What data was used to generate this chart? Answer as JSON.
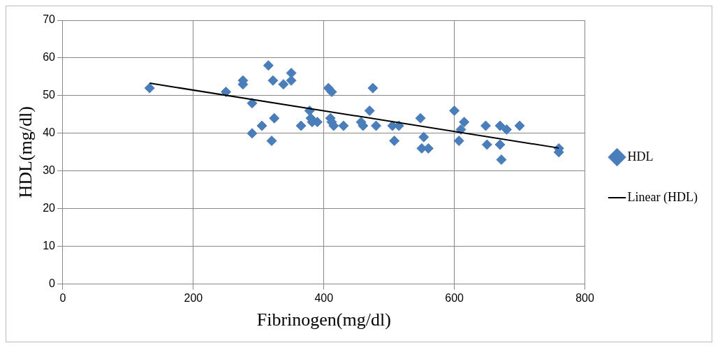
{
  "chart_data": {
    "type": "scatter",
    "xlabel": "Fibrinogen(mg/dl)",
    "ylabel": "HDL(mg/dl)",
    "xlim": [
      0,
      800
    ],
    "xticks": [
      0,
      200,
      400,
      600,
      800
    ],
    "ylim": [
      0,
      70
    ],
    "yticks": [
      0,
      10,
      20,
      30,
      40,
      50,
      60,
      70
    ],
    "grid": true,
    "legend": "right",
    "series": [
      {
        "name": "HDL",
        "color": "#4a7ebb",
        "marker": "diamond",
        "x": [
          133,
          250,
          276,
          276,
          290,
          290,
          305,
          315,
          320,
          322,
          324,
          338,
          350,
          350,
          365,
          378,
          380,
          382,
          390,
          407,
          410,
          412,
          412,
          415,
          430,
          457,
          460,
          470,
          475,
          480,
          505,
          508,
          515,
          548,
          550,
          553,
          560,
          600,
          607,
          610,
          615,
          648,
          650,
          670,
          670,
          672,
          680,
          700,
          760,
          760
        ],
        "values": [
          52,
          51,
          54,
          53,
          48,
          40,
          42,
          58,
          38,
          54,
          44,
          53,
          56,
          54,
          42,
          46,
          44,
          43,
          43,
          52,
          44,
          43,
          51,
          42,
          42,
          43,
          42,
          46,
          52,
          42,
          42,
          38,
          42,
          44,
          36,
          39,
          36,
          46,
          38,
          41,
          43,
          42,
          37,
          42,
          37,
          33,
          41,
          42,
          36,
          35
        ]
      },
      {
        "name": "Linear (HDL)",
        "type": "line",
        "color": "#000000",
        "x": [
          133,
          760
        ],
        "values": [
          53.3,
          36.1
        ]
      }
    ]
  }
}
